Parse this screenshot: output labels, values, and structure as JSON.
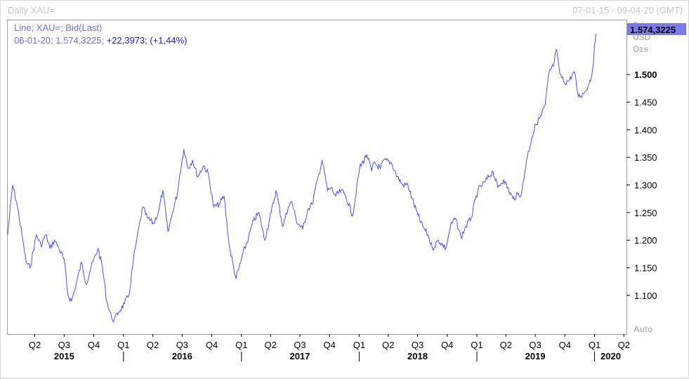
{
  "window": {
    "title": "Daily XAU=",
    "date_range": "07-01-15 - 09-04-20 (GMT)"
  },
  "legend": {
    "line1": "Line; XAU=; Bid(Last)",
    "line2_prefix": "06-01-20; 1.574,3225;",
    "line2_change": "+22,3973; (+1,44%)"
  },
  "axis": {
    "y_unit_lines": [
      "Price",
      "USD",
      "Ozs"
    ],
    "last_price_label": "1.574,3225",
    "auto_label": "Auto"
  },
  "colors": {
    "line": "#5050e0",
    "last_price_bg": "#7b7bee",
    "gridline": "none"
  },
  "chart_data": {
    "type": "line",
    "title": "",
    "ylabel": "Price USD Ozs",
    "xlabel": "",
    "ylim": [
      1030,
      1598
    ],
    "grid": false,
    "y_ticks": [
      {
        "value": 1100,
        "label": "1.100",
        "major": false
      },
      {
        "value": 1150,
        "label": "1.150",
        "major": false
      },
      {
        "value": 1200,
        "label": "1.200",
        "major": false
      },
      {
        "value": 1250,
        "label": "1.250",
        "major": false
      },
      {
        "value": 1300,
        "label": "1.300",
        "major": false
      },
      {
        "value": 1350,
        "label": "1.350",
        "major": false
      },
      {
        "value": 1400,
        "label": "1.400",
        "major": false
      },
      {
        "value": 1450,
        "label": "1.450",
        "major": false
      },
      {
        "value": 1500,
        "label": "1.500",
        "major": true
      }
    ],
    "x_range": [
      "2015-01-07",
      "2020-04-09"
    ],
    "quarter_labels": [
      "Q2",
      "Q3",
      "Q4",
      "Q1",
      "Q2",
      "Q3",
      "Q4",
      "Q1",
      "Q2",
      "Q3",
      "Q4",
      "Q1",
      "Q2",
      "Q3",
      "Q4",
      "Q1",
      "Q2",
      "Q3",
      "Q4",
      "Q1",
      "Q2"
    ],
    "quarter_label_dates": [
      "2015-04-01",
      "2015-07-01",
      "2015-10-01",
      "2016-01-01",
      "2016-04-01",
      "2016-07-01",
      "2016-10-01",
      "2017-01-01",
      "2017-04-01",
      "2017-07-01",
      "2017-10-01",
      "2018-01-01",
      "2018-04-01",
      "2018-07-01",
      "2018-10-01",
      "2019-01-01",
      "2019-04-01",
      "2019-07-01",
      "2019-10-01",
      "2020-01-01",
      "2020-04-01"
    ],
    "year_labels": [
      "2015",
      "2016",
      "2017",
      "2018",
      "2019",
      "2020"
    ],
    "year_label_dates": [
      "2015-07-01",
      "2016-07-01",
      "2017-07-01",
      "2018-07-01",
      "2019-07-01",
      "2020-02-20"
    ],
    "year_separators": [
      "2016-01-01",
      "2017-01-01",
      "2018-01-01",
      "2019-01-01",
      "2020-01-01"
    ],
    "series": [
      {
        "x": [
          "2015-01-07",
          "2015-01-22",
          "2015-02-05",
          "2015-02-20",
          "2015-03-05",
          "2015-03-17",
          "2015-04-06",
          "2015-04-20",
          "2015-05-05",
          "2015-05-18",
          "2015-06-01",
          "2015-06-15",
          "2015-07-01",
          "2015-07-13",
          "2015-07-24",
          "2015-08-06",
          "2015-08-24",
          "2015-09-08",
          "2015-09-22",
          "2015-10-14",
          "2015-10-28",
          "2015-11-10",
          "2015-11-25",
          "2015-12-03",
          "2015-12-17",
          "2016-01-04",
          "2016-01-18",
          "2016-02-01",
          "2016-02-11",
          "2016-03-01",
          "2016-03-15",
          "2016-04-04",
          "2016-04-20",
          "2016-05-02",
          "2016-05-18",
          "2016-06-01",
          "2016-06-16",
          "2016-06-24",
          "2016-07-06",
          "2016-07-20",
          "2016-08-02",
          "2016-08-18",
          "2016-09-06",
          "2016-09-20",
          "2016-10-07",
          "2016-10-24",
          "2016-11-08",
          "2016-11-24",
          "2016-12-15",
          "2017-01-05",
          "2017-01-23",
          "2017-02-07",
          "2017-02-24",
          "2017-03-14",
          "2017-04-03",
          "2017-04-18",
          "2017-05-09",
          "2017-05-26",
          "2017-06-06",
          "2017-06-20",
          "2017-07-10",
          "2017-07-25",
          "2017-08-08",
          "2017-08-29",
          "2017-09-08",
          "2017-09-25",
          "2017-10-06",
          "2017-10-20",
          "2017-11-06",
          "2017-11-20",
          "2017-12-12",
          "2018-01-02",
          "2018-01-25",
          "2018-02-08",
          "2018-02-16",
          "2018-03-08",
          "2018-03-19",
          "2018-04-11",
          "2018-04-25",
          "2018-05-15",
          "2018-06-01",
          "2018-06-14",
          "2018-07-02",
          "2018-07-17",
          "2018-08-02",
          "2018-08-16",
          "2018-09-04",
          "2018-09-27",
          "2018-10-11",
          "2018-10-26",
          "2018-11-13",
          "2018-11-28",
          "2018-12-14",
          "2019-01-04",
          "2019-01-25",
          "2019-02-20",
          "2019-03-07",
          "2019-03-25",
          "2019-04-10",
          "2019-04-23",
          "2019-05-03",
          "2019-05-20",
          "2019-06-04",
          "2019-06-20",
          "2019-07-03",
          "2019-07-19",
          "2019-08-01",
          "2019-08-13",
          "2019-08-26",
          "2019-09-04",
          "2019-09-16",
          "2019-09-30",
          "2019-10-15",
          "2019-10-30",
          "2019-11-12",
          "2019-11-28",
          "2019-12-12",
          "2019-12-24",
          "2020-01-03",
          "2020-01-06"
        ],
        "values": [
          1210,
          1300,
          1265,
          1210,
          1160,
          1150,
          1210,
          1190,
          1210,
          1185,
          1200,
          1185,
          1165,
          1100,
          1090,
          1118,
          1160,
          1120,
          1150,
          1185,
          1150,
          1090,
          1060,
          1055,
          1070,
          1085,
          1100,
          1165,
          1200,
          1260,
          1240,
          1230,
          1255,
          1290,
          1215,
          1250,
          1285,
          1320,
          1365,
          1330,
          1345,
          1315,
          1335,
          1320,
          1260,
          1265,
          1280,
          1190,
          1130,
          1175,
          1205,
          1235,
          1250,
          1200,
          1250,
          1290,
          1225,
          1260,
          1270,
          1235,
          1220,
          1255,
          1265,
          1320,
          1345,
          1290,
          1295,
          1280,
          1290,
          1280,
          1245,
          1330,
          1355,
          1325,
          1340,
          1330,
          1345,
          1340,
          1320,
          1300,
          1300,
          1275,
          1245,
          1225,
          1210,
          1185,
          1200,
          1185,
          1225,
          1240,
          1205,
          1225,
          1240,
          1290,
          1305,
          1325,
          1295,
          1310,
          1290,
          1275,
          1280,
          1285,
          1345,
          1385,
          1410,
          1425,
          1445,
          1505,
          1515,
          1545,
          1500,
          1485,
          1490,
          1505,
          1460,
          1465,
          1480,
          1500,
          1560,
          1574
        ]
      }
    ]
  }
}
